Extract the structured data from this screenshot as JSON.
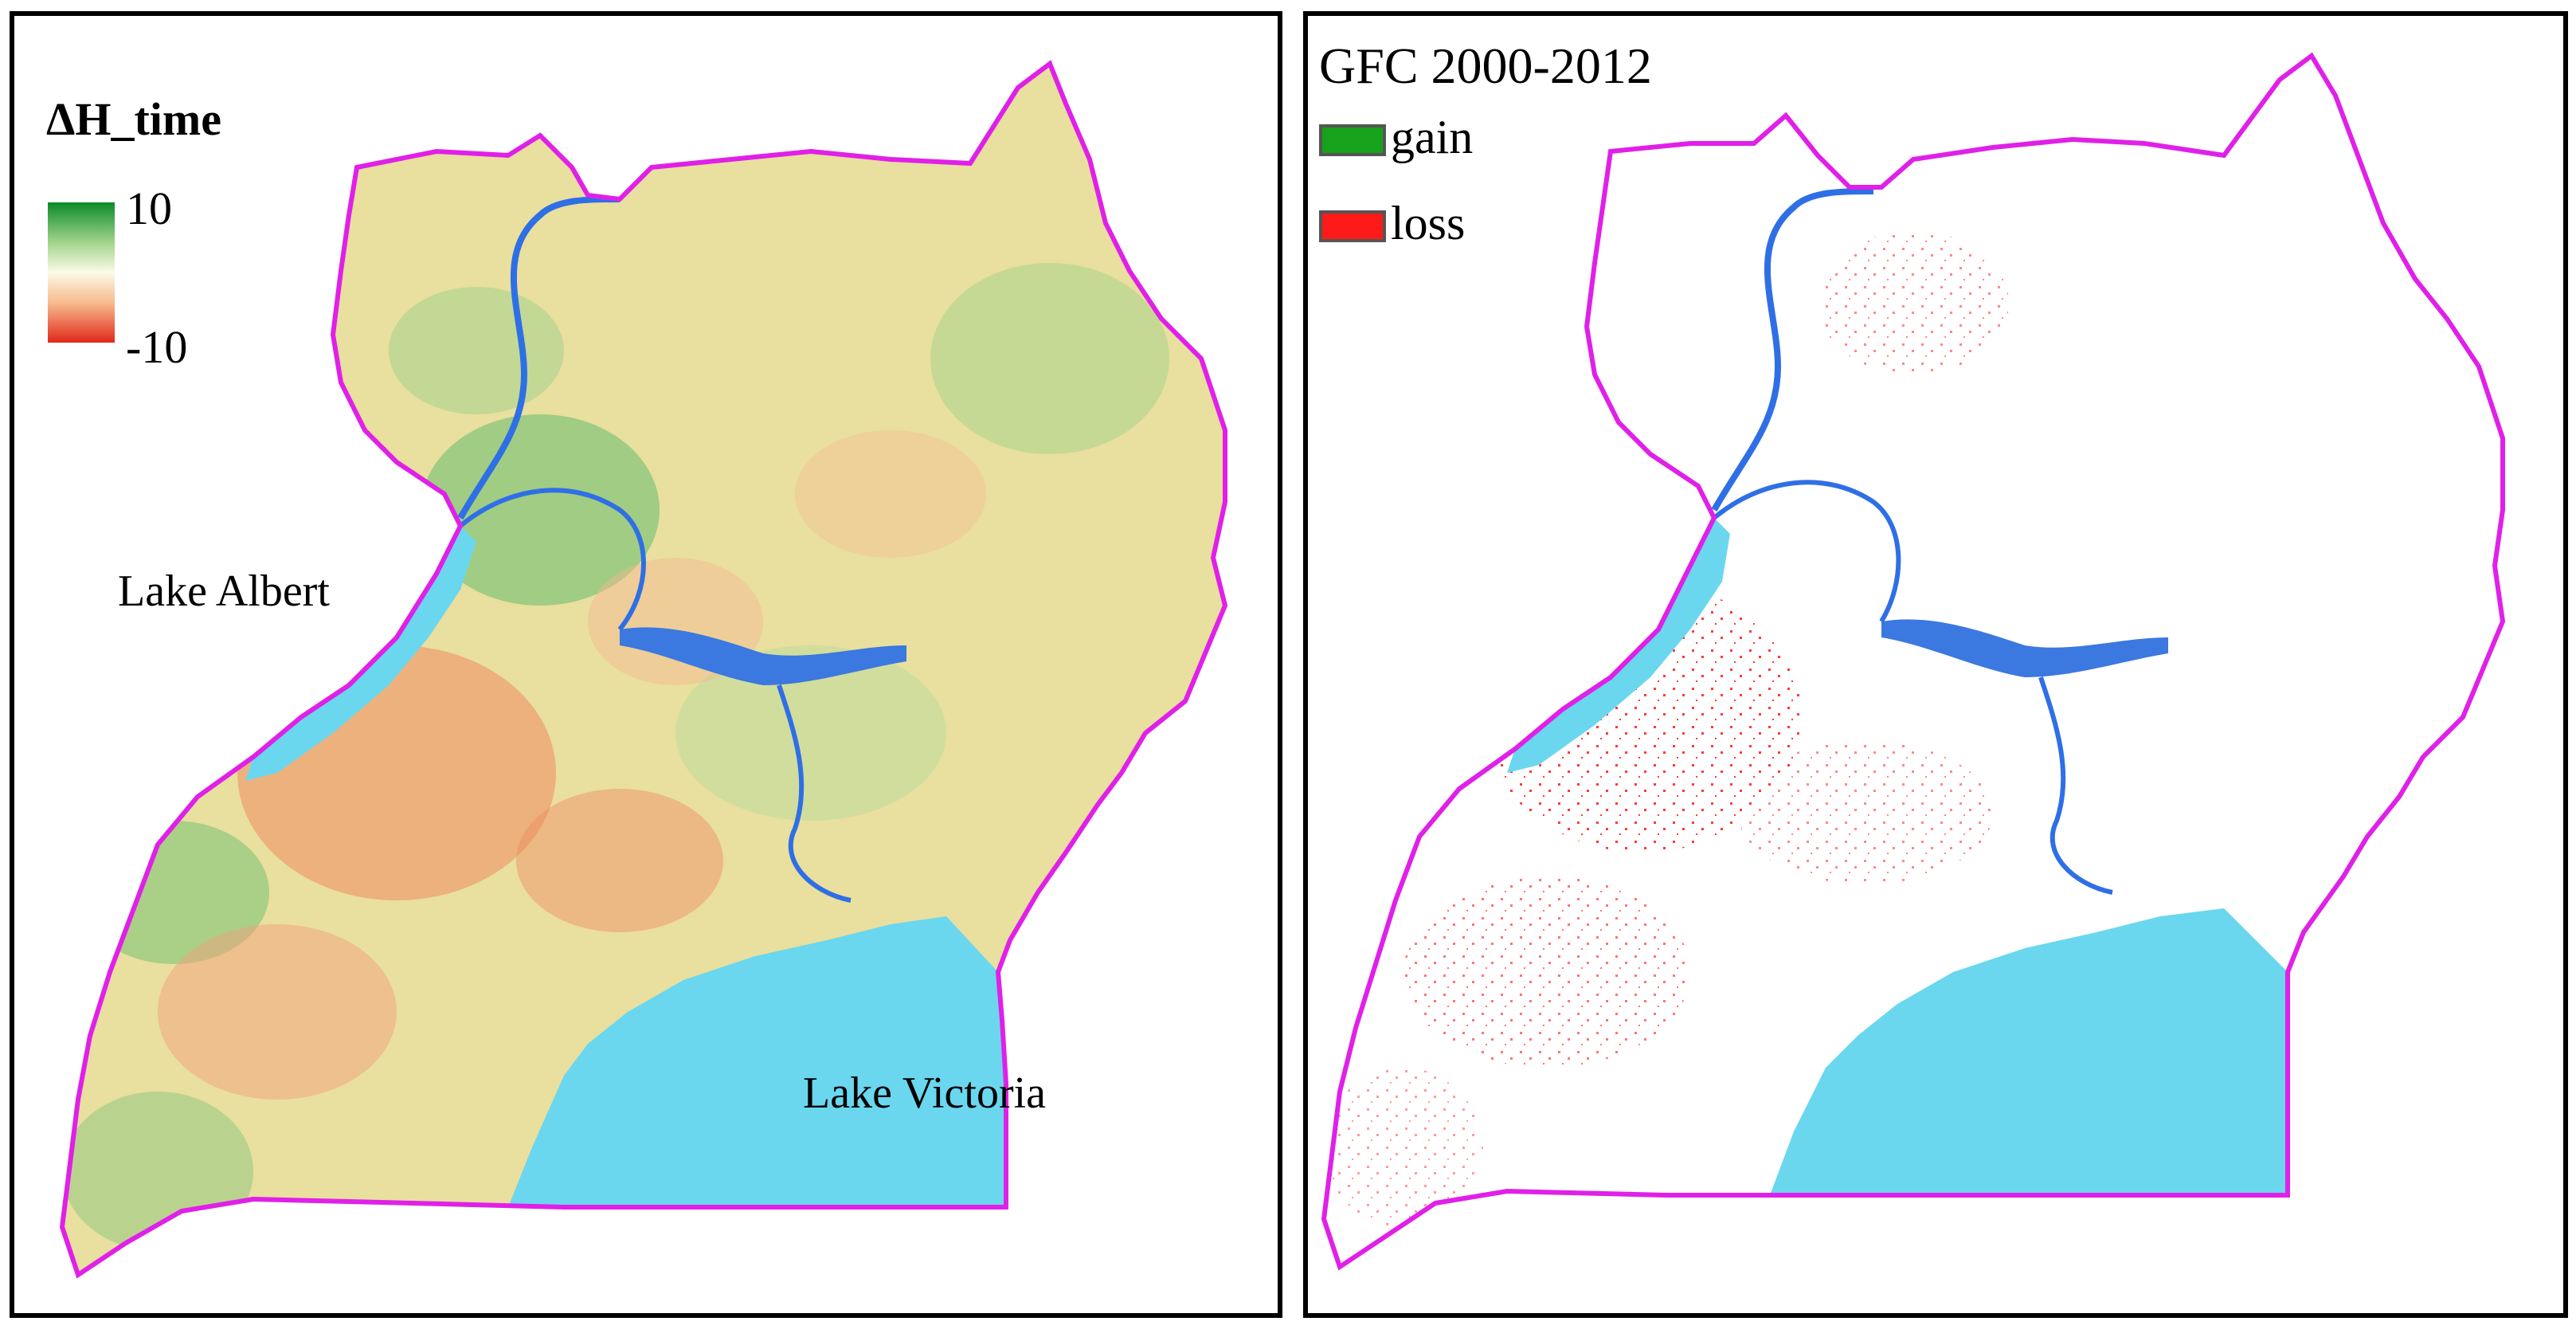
{
  "left_panel": {
    "legend_title": "ΔH_time",
    "legend_max": "10",
    "legend_min": "-10",
    "ramp_colors": [
      "#0a8a2a",
      "#9fd38a",
      "#fbfbe6",
      "#f7b98c",
      "#e0281a"
    ],
    "labels": {
      "lake_albert": "Lake Albert",
      "lake_victoria": "Lake Victoria"
    }
  },
  "right_panel": {
    "title": "GFC 2000-2012",
    "legend": [
      {
        "label": "gain",
        "color": "#16a21b"
      },
      {
        "label": "loss",
        "color": "#ff1a1a"
      }
    ]
  },
  "colors": {
    "border": "#e020e8",
    "water": "#6ad7ef",
    "river": "#2f6fe6",
    "land_base": "#e9df9e",
    "green_patch": "#8fc77c",
    "red_patch": "#ef8a62"
  }
}
